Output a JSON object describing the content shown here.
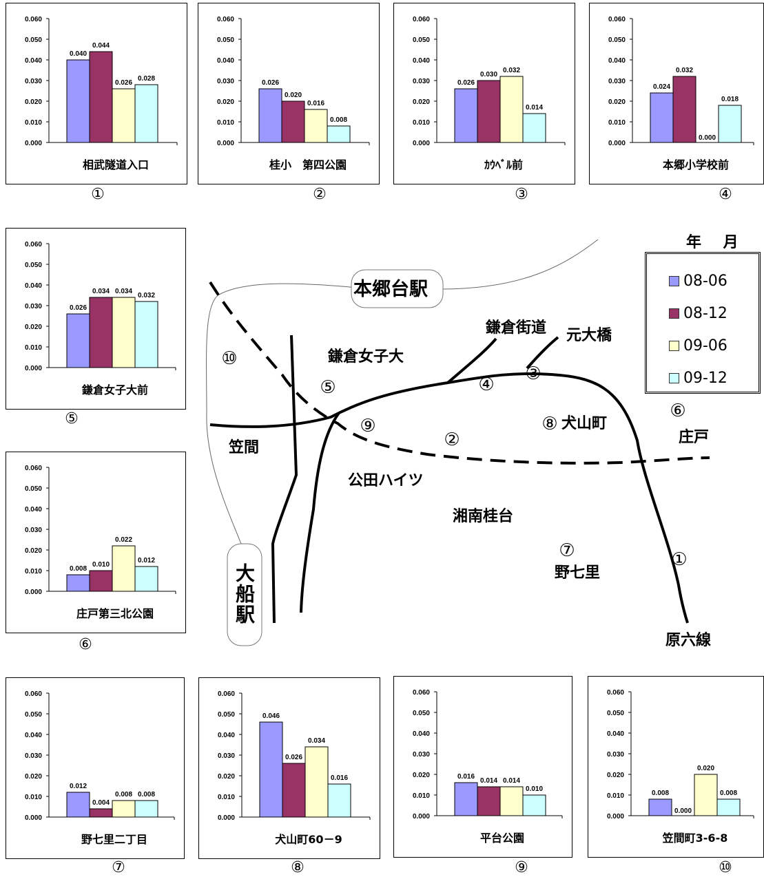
{
  "legend": {
    "title": "年 月",
    "items": [
      {
        "label": "08-06",
        "color": "#9999ff"
      },
      {
        "label": "08-12",
        "color": "#993366"
      },
      {
        "label": "09-06",
        "color": "#ffffcc"
      },
      {
        "label": "09-12",
        "color": "#ccffff"
      }
    ]
  },
  "chart_data": [
    {
      "type": "bar",
      "site": "①",
      "xlabel": "相武隧道入口",
      "categories": [
        "08-06",
        "08-12",
        "09-06",
        "09-12"
      ],
      "values": [
        0.04,
        0.044,
        0.026,
        0.028
      ],
      "ylim": [
        0,
        0.06
      ],
      "yticks": [
        "0.000",
        "0.010",
        "0.020",
        "0.030",
        "0.040",
        "0.050",
        "0.060"
      ],
      "value_labels": [
        "0.040",
        "0.044",
        "0.026",
        "0.028"
      ]
    },
    {
      "type": "bar",
      "site": "②",
      "xlabel": "桂小　第四公園",
      "categories": [
        "08-06",
        "08-12",
        "09-06",
        "09-12"
      ],
      "values": [
        0.026,
        0.02,
        0.016,
        0.008
      ],
      "ylim": [
        0,
        0.06
      ],
      "yticks": [
        "0.000",
        "0.010",
        "0.020",
        "0.030",
        "0.040",
        "0.050",
        "0.060"
      ],
      "value_labels": [
        "0.026",
        "0.020",
        "0.016",
        "0.008"
      ]
    },
    {
      "type": "bar",
      "site": "③",
      "xlabel": "ｶｳﾍﾞﾙ前",
      "categories": [
        "08-06",
        "08-12",
        "09-06",
        "09-12"
      ],
      "values": [
        0.026,
        0.03,
        0.032,
        0.014
      ],
      "ylim": [
        0,
        0.06
      ],
      "yticks": [
        "0.000",
        "0.010",
        "0.020",
        "0.030",
        "0.040",
        "0.050",
        "0.060"
      ],
      "value_labels": [
        "0.026",
        "0.030",
        "0.032",
        "0.014"
      ]
    },
    {
      "type": "bar",
      "site": "④",
      "xlabel": "本郷小学校前",
      "categories": [
        "08-06",
        "08-12",
        "09-06",
        "09-12"
      ],
      "values": [
        0.024,
        0.032,
        0.0,
        0.018
      ],
      "ylim": [
        0,
        0.06
      ],
      "yticks": [
        "0.000",
        "0.010",
        "0.020",
        "0.030",
        "0.040",
        "0.050",
        "0.060"
      ],
      "value_labels": [
        "0.024",
        "0.032",
        "0.000",
        "0.018"
      ]
    },
    {
      "type": "bar",
      "site": "⑤",
      "xlabel": "鎌倉女子大前",
      "categories": [
        "08-06",
        "08-12",
        "09-06",
        "09-12"
      ],
      "values": [
        0.026,
        0.034,
        0.034,
        0.032
      ],
      "ylim": [
        0,
        0.06
      ],
      "yticks": [
        "0.000",
        "0.010",
        "0.020",
        "0.030",
        "0.040",
        "0.050",
        "0.060"
      ],
      "value_labels": [
        "0.026",
        "0.034",
        "0.034",
        "0.032"
      ]
    },
    {
      "type": "bar",
      "site": "⑥",
      "xlabel": "庄戸第三北公園",
      "categories": [
        "08-06",
        "08-12",
        "09-06",
        "09-12"
      ],
      "values": [
        0.008,
        0.01,
        0.022,
        0.012
      ],
      "ylim": [
        0,
        0.06
      ],
      "yticks": [
        "0.000",
        "0.010",
        "0.020",
        "0.030",
        "0.040",
        "0.050",
        "0.060"
      ],
      "value_labels": [
        "0.008",
        "0.010",
        "0.022",
        "0.012"
      ]
    },
    {
      "type": "bar",
      "site": "⑦",
      "xlabel": "野七里二丁目",
      "categories": [
        "08-06",
        "08-12",
        "09-06",
        "09-12"
      ],
      "values": [
        0.012,
        0.004,
        0.008,
        0.008
      ],
      "ylim": [
        0,
        0.06
      ],
      "yticks": [
        "0.000",
        "0.010",
        "0.020",
        "0.030",
        "0.040",
        "0.050",
        "0.060"
      ],
      "value_labels": [
        "0.012",
        "0.004",
        "0.008",
        "0.008"
      ]
    },
    {
      "type": "bar",
      "site": "⑧",
      "xlabel": "犬山町60－9",
      "categories": [
        "08-06",
        "08-12",
        "09-06",
        "09-12"
      ],
      "values": [
        0.046,
        0.026,
        0.034,
        0.016
      ],
      "ylim": [
        0,
        0.06
      ],
      "yticks": [
        "0.000",
        "0.010",
        "0.020",
        "0.030",
        "0.040",
        "0.050",
        "0.060"
      ],
      "value_labels": [
        "0.046",
        "0.026",
        "0.034",
        "0.016"
      ]
    },
    {
      "type": "bar",
      "site": "⑨",
      "xlabel": "平台公園",
      "categories": [
        "08-06",
        "08-12",
        "09-06",
        "09-12"
      ],
      "values": [
        0.016,
        0.014,
        0.014,
        0.01
      ],
      "ylim": [
        0,
        0.06
      ],
      "yticks": [
        "0.000",
        "0.010",
        "0.020",
        "0.030",
        "0.040",
        "0.050",
        "0.060"
      ],
      "value_labels": [
        "0.016",
        "0.014",
        "0.014",
        "0.010"
      ]
    },
    {
      "type": "bar",
      "site": "⑩",
      "xlabel": "笠間町3-6-8",
      "categories": [
        "08-06",
        "08-12",
        "09-06",
        "09-12"
      ],
      "values": [
        0.008,
        0.0,
        0.02,
        0.008
      ],
      "ylim": [
        0,
        0.06
      ],
      "yticks": [
        "0.000",
        "0.010",
        "0.020",
        "0.030",
        "0.040",
        "0.050",
        "0.060"
      ],
      "value_labels": [
        "0.008",
        "0.000",
        "0.020",
        "0.008"
      ]
    }
  ],
  "map": {
    "station_hongodai": "本郷台駅",
    "station_ofuna": "大船駅",
    "kamakura_kaido": "鎌倉街道",
    "motoohashi": "元大橋",
    "kamakura_joshidai": "鎌倉女子大",
    "kasama": "笠間",
    "inuyama": "犬山町",
    "shodo": "庄戸",
    "kudenhaitsu": "公田ハイツ",
    "shonan_katsuradai": "湘南桂台",
    "noshichiri": "野七里",
    "haroku": "原六線",
    "markers": [
      "①",
      "②",
      "③",
      "④",
      "⑤",
      "⑥",
      "⑦",
      "⑧",
      "⑨",
      "⑩"
    ]
  }
}
